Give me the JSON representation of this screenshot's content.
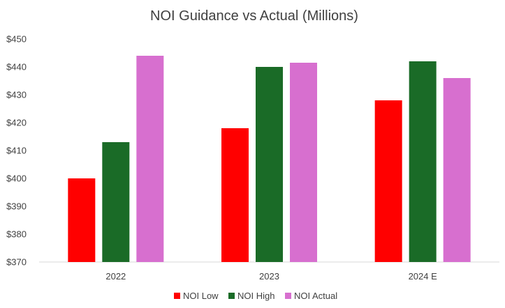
{
  "chart_data": {
    "type": "bar",
    "title": "NOI Guidance vs Actual (Millions)",
    "xlabel": "",
    "ylabel": "",
    "categories": [
      "2022",
      "2023",
      "2024 E"
    ],
    "series": [
      {
        "name": "NOI Low",
        "color": "#ff0000",
        "values": [
          400,
          418,
          428
        ]
      },
      {
        "name": "NOI High",
        "color": "#1a6b27",
        "values": [
          413,
          440,
          442
        ]
      },
      {
        "name": "NOI Actual",
        "color": "#d76fcf",
        "values": [
          444,
          441.5,
          436
        ]
      }
    ],
    "ylim": [
      370,
      450
    ],
    "y_ticks": [
      370,
      380,
      390,
      400,
      410,
      420,
      430,
      440,
      450
    ],
    "y_tick_labels": [
      "$370",
      "$380",
      "$390",
      "$400",
      "$410",
      "$420",
      "$430",
      "$440",
      "$450"
    ],
    "grid": false,
    "legend_position": "bottom"
  }
}
